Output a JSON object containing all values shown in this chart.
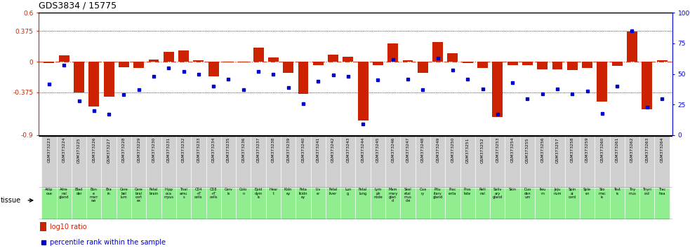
{
  "title": "GDS3834 / 15775",
  "gsm_ids": [
    "GSM373223",
    "GSM373224",
    "GSM373225",
    "GSM373226",
    "GSM373227",
    "GSM373228",
    "GSM373229",
    "GSM373230",
    "GSM373231",
    "GSM373232",
    "GSM373233",
    "GSM373234",
    "GSM373235",
    "GSM373236",
    "GSM373237",
    "GSM373238",
    "GSM373239",
    "GSM373240",
    "GSM373241",
    "GSM373242",
    "GSM373243",
    "GSM373244",
    "GSM373245",
    "GSM373246",
    "GSM373247",
    "GSM373248",
    "GSM373249",
    "GSM373250",
    "GSM373251",
    "GSM373252",
    "GSM373253",
    "GSM373254",
    "GSM373255",
    "GSM373256",
    "GSM373257",
    "GSM373258",
    "GSM373259",
    "GSM373260",
    "GSM373261",
    "GSM373262",
    "GSM373263",
    "GSM373264"
  ],
  "tissues": [
    "Adip\nose",
    "Adre\nnal\ngland",
    "Blad\nder",
    "Bon\ne\nmarr\now",
    "Bra\nin",
    "Cere\nbel\nlum",
    "Cere\nbral\ncort\nex",
    "Fetal\nbrain",
    "Hipp\noca\nmpus",
    "Thal\namu\ns",
    "CD4\n+T\ncells",
    "CD8\n+T\ncells",
    "Cerv\nix",
    "Colo\nn",
    "Epid\ndym\nis",
    "Hear\nt",
    "Kidn\ney",
    "Feta\nlkidn\ney",
    "Liv\ner",
    "Fetal\nliver",
    "Lun\ng",
    "Fetal\nlung",
    "Lym\nph\nnode",
    "Mam\nmary\nglan\nd",
    "Skel\netal\nmus\ncle",
    "Ova\nry",
    "Pitu\nitary\ngland",
    "Plac\nenta",
    "Pros\ntate",
    "Reti\nnal",
    "Saliv\nary\ngland",
    "Skin",
    "Duo\nden\num",
    "Ileu\nm",
    "Jeju\nnum",
    "Spin\nal\ncord",
    "Sple\nen",
    "Sto\nmac\nis",
    "Test\nis",
    "Thy\nmus",
    "Thyri\noid",
    "Trac\nhea"
  ],
  "log10_ratio": [
    -0.02,
    0.08,
    -0.38,
    -0.55,
    -0.43,
    -0.07,
    -0.08,
    0.03,
    0.12,
    0.14,
    0.02,
    -0.18,
    -0.01,
    -0.01,
    0.17,
    0.05,
    -0.14,
    -0.39,
    -0.04,
    0.09,
    0.06,
    -0.72,
    -0.04,
    0.22,
    0.02,
    -0.14,
    0.24,
    0.1,
    -0.02,
    -0.08,
    -0.68,
    -0.04,
    -0.04,
    -0.09,
    -0.09,
    -0.1,
    -0.08,
    -0.49,
    -0.05,
    0.37,
    -0.58,
    0.02
  ],
  "percentile_rank": [
    42,
    57,
    28,
    20,
    17,
    33,
    37,
    48,
    55,
    52,
    50,
    40,
    46,
    37,
    52,
    50,
    39,
    26,
    44,
    49,
    48,
    9,
    45,
    62,
    46,
    37,
    63,
    53,
    46,
    38,
    17,
    43,
    30,
    34,
    38,
    34,
    36,
    18,
    40,
    85,
    23,
    30
  ],
  "bar_color": "#cc2200",
  "dot_color": "#0000cc",
  "ylim_left": [
    -0.9,
    0.6
  ],
  "ylim_right": [
    0,
    100
  ],
  "yticks_left": [
    -0.9,
    -0.375,
    0.0,
    0.375,
    0.6
  ],
  "ytick_labels_left": [
    "-0.9",
    "-0.375",
    "0",
    "0.375",
    "0.6"
  ],
  "yticks_right": [
    0,
    25,
    50,
    75,
    100
  ],
  "ytick_labels_right": [
    "0",
    "25",
    "50",
    "75",
    "100%"
  ],
  "hlines": [
    0.375,
    -0.375
  ],
  "zero_line": 0.0,
  "gsm_row_bg": "#d0d0d0",
  "tissue_row_bg": "#90ee90",
  "legend_bar_label": "log10 ratio",
  "legend_dot_label": "percentile rank within the sample",
  "tissue_label": "tissue"
}
